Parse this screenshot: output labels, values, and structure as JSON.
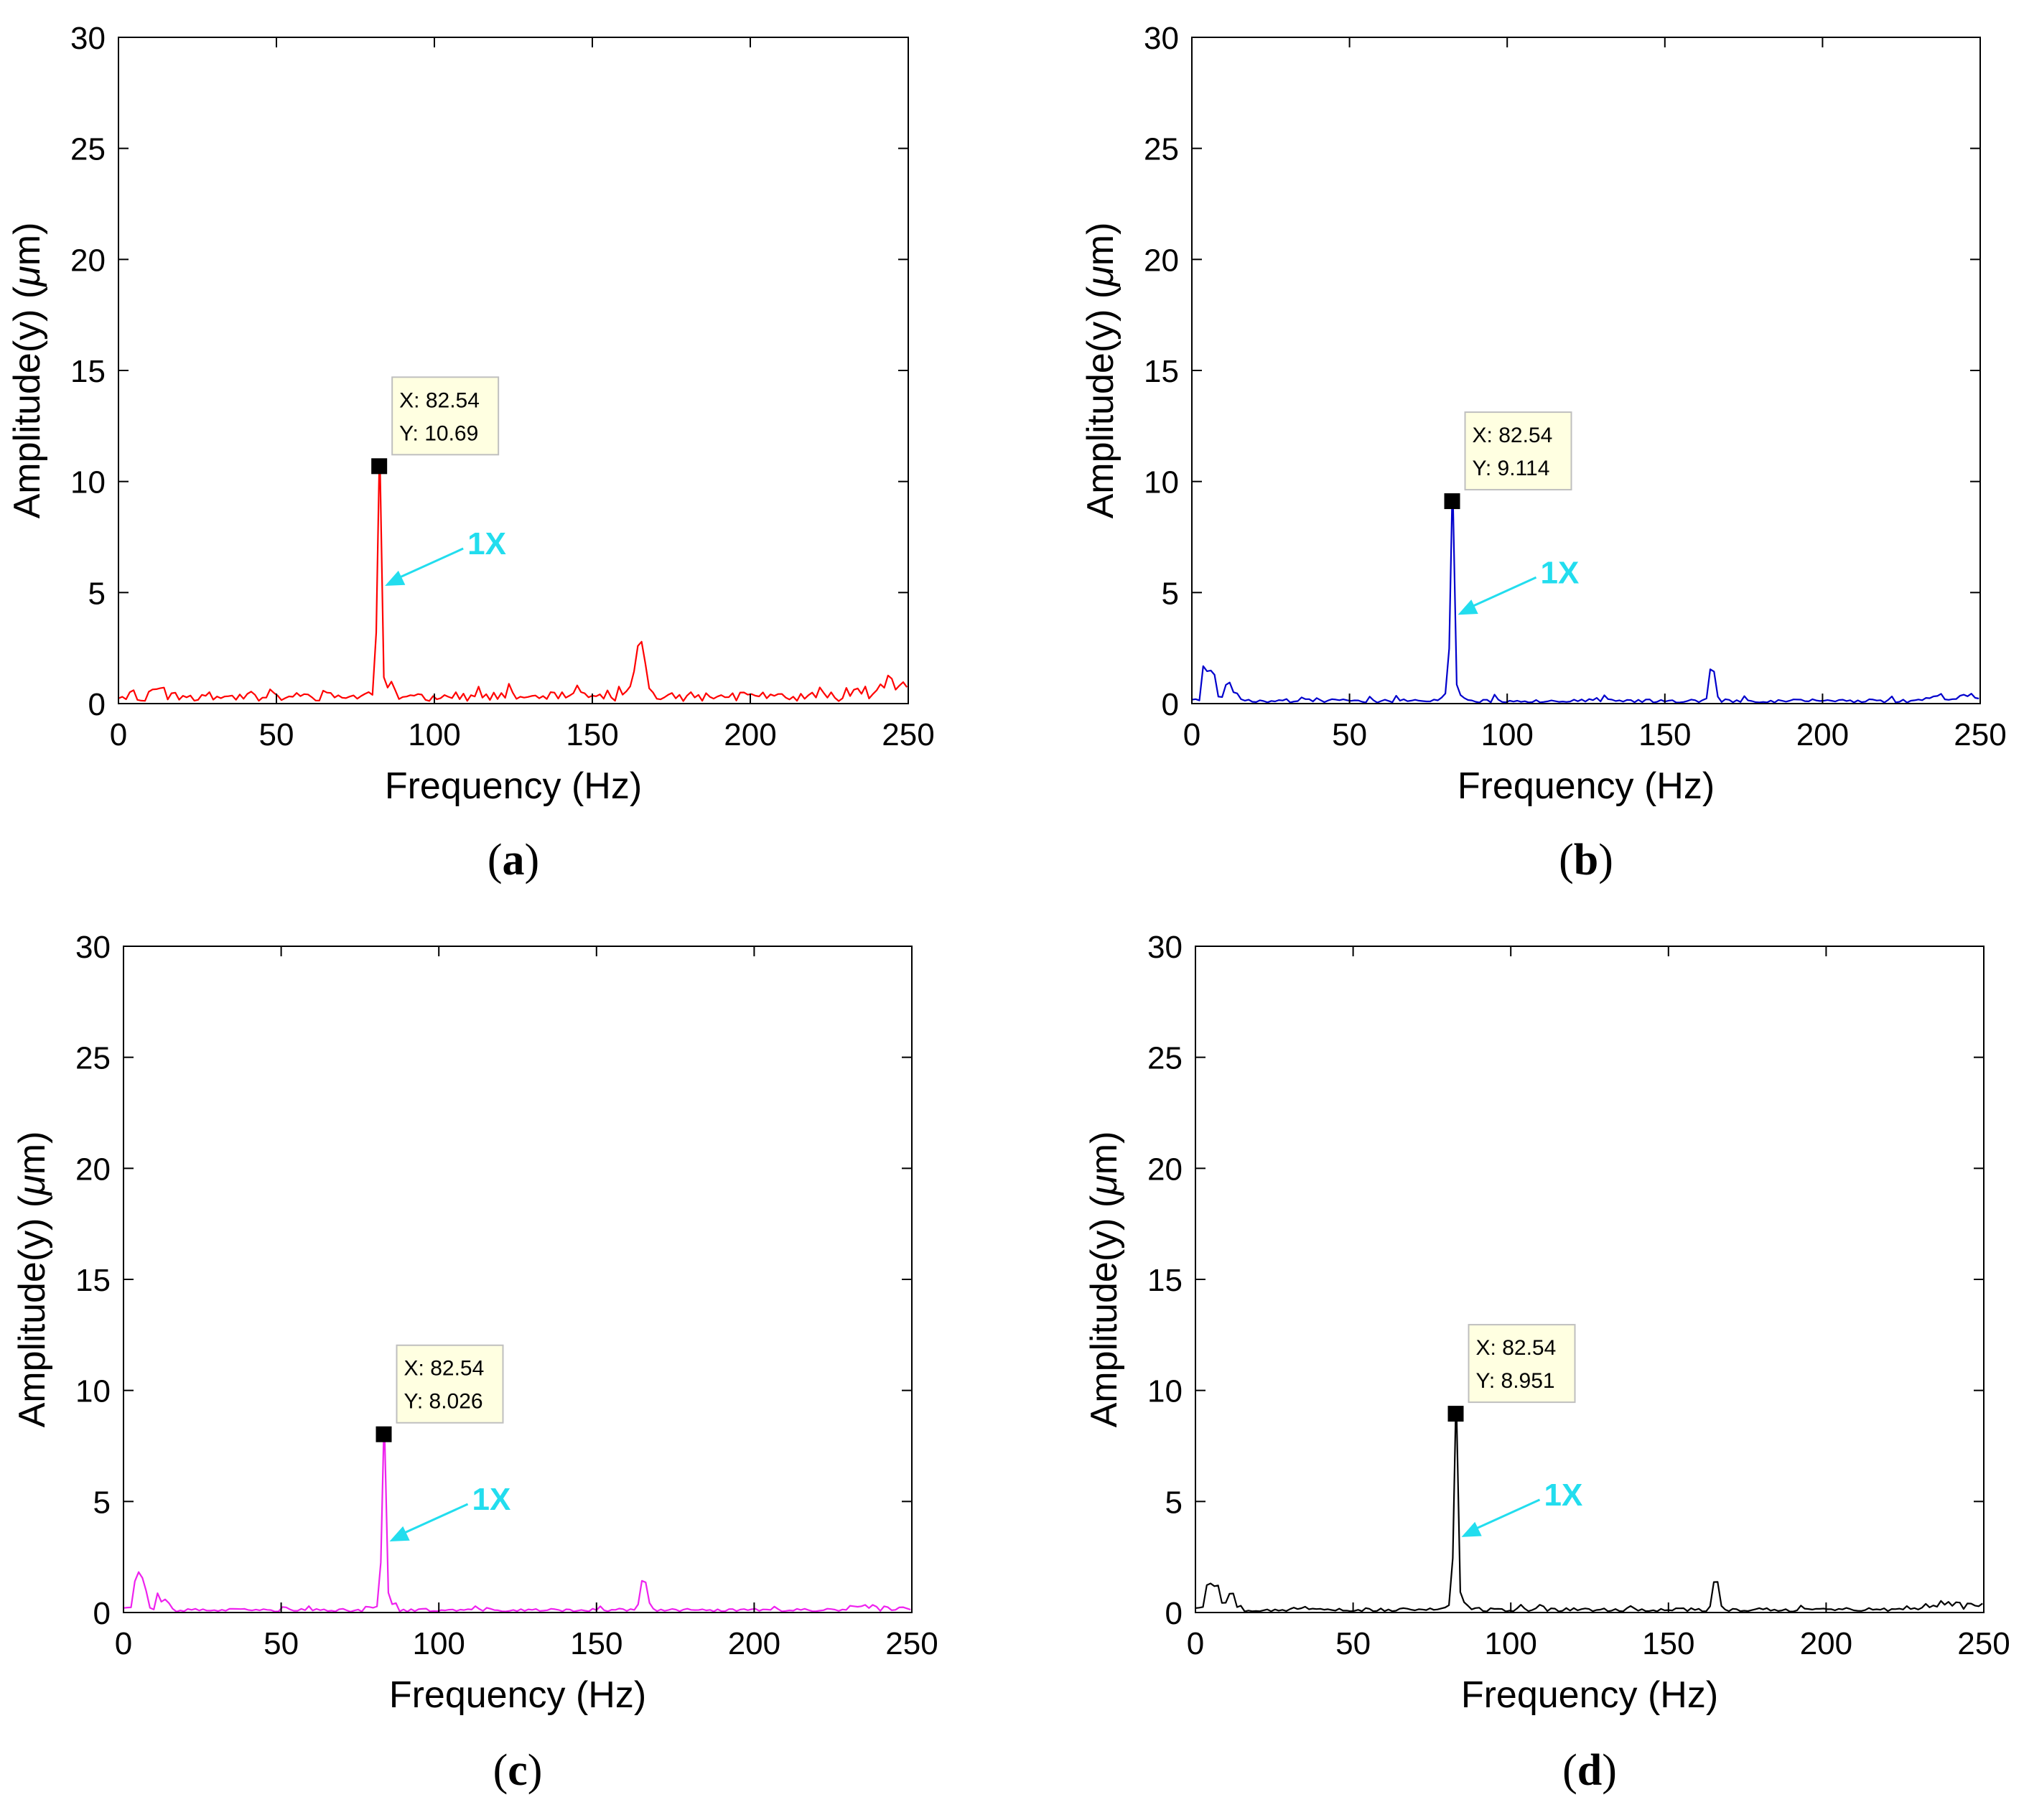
{
  "figure": {
    "panels": [
      "a",
      "b",
      "c",
      "d"
    ],
    "annotation_color": "#22DDEE",
    "datatip_background": "#FFFFE1"
  },
  "chart_data": [
    {
      "id": "a",
      "type": "line",
      "caption_letter": "a",
      "color": "#FF0000",
      "xlabel": "Frequency (Hz)",
      "ylabel_prefix": "Amplitude(y) (",
      "ylabel_mu": "μ",
      "ylabel_suffix": "m)",
      "xlim": [
        0,
        250
      ],
      "ylim": [
        0,
        30
      ],
      "xticks": [
        0,
        50,
        100,
        150,
        200,
        250
      ],
      "yticks": [
        0,
        5,
        10,
        15,
        20,
        25,
        30
      ],
      "peak": {
        "x": 82.54,
        "y": 10.69
      },
      "datatip": {
        "x_text": "X: 82.54",
        "y_text": "Y: 10.69"
      },
      "annotation": {
        "text": "1X",
        "x": 82.54,
        "y": 5.3
      },
      "harmonics": [
        {
          "x": 165,
          "y": 2.5,
          "width": 1.6
        }
      ],
      "noise": 0.45,
      "low_freq": [
        0.3,
        0.7,
        0.2,
        0.6,
        0.7
      ],
      "tail": 0.8,
      "seed": 11
    },
    {
      "id": "b",
      "type": "line",
      "caption_letter": "b",
      "color": "#0000CC",
      "xlabel": "Frequency (Hz)",
      "ylabel_prefix": "Amplitude(y) (",
      "ylabel_mu": "μ",
      "ylabel_suffix": "m)",
      "xlim": [
        0,
        250
      ],
      "ylim": [
        0,
        30
      ],
      "xticks": [
        0,
        50,
        100,
        150,
        200,
        250
      ],
      "yticks": [
        0,
        5,
        10,
        15,
        20,
        25,
        30
      ],
      "peak": {
        "x": 82.54,
        "y": 9.114
      },
      "datatip": {
        "x_text": "X: 82.54",
        "y_text": "Y: 9.114"
      },
      "annotation": {
        "text": "1X",
        "x": 82.54,
        "y": 4.0
      },
      "harmonics": [
        {
          "x": 165,
          "y": 1.8,
          "width": 0.8
        }
      ],
      "noise": 0.18,
      "low_freq": [
        0.2,
        2.0,
        1.6,
        0.3,
        1.1,
        0.5
      ],
      "tail": 0.3,
      "seed": 23
    },
    {
      "id": "c",
      "type": "line",
      "caption_letter": "c",
      "color": "#EE22EE",
      "xlabel": "Frequency (Hz)",
      "ylabel_prefix": "Amplitude(y) (",
      "ylabel_mu": "μ",
      "ylabel_suffix": "m)",
      "xlim": [
        0,
        250
      ],
      "ylim": [
        0,
        30
      ],
      "xticks": [
        0,
        50,
        100,
        150,
        200,
        250
      ],
      "yticks": [
        0,
        5,
        10,
        15,
        20,
        25,
        30
      ],
      "peak": {
        "x": 82.54,
        "y": 8.026
      },
      "datatip": {
        "x_text": "X: 82.54",
        "y_text": "Y: 8.026"
      },
      "annotation": {
        "text": "1X",
        "x": 82.54,
        "y": 3.2
      },
      "harmonics": [
        {
          "x": 165,
          "y": 1.6,
          "width": 0.9
        }
      ],
      "noise": 0.15,
      "low_freq": [
        0.3,
        2.2,
        1.5,
        0.2,
        0.8,
        0.6
      ],
      "tail": 0.2,
      "seed": 37
    },
    {
      "id": "d",
      "type": "line",
      "caption_letter": "d",
      "color": "#000000",
      "xlabel": "Frequency (Hz)",
      "ylabel_prefix": "Amplitude(y) (",
      "ylabel_mu": "μ",
      "ylabel_suffix": "m)",
      "xlim": [
        0,
        250
      ],
      "ylim": [
        0,
        30
      ],
      "xticks": [
        0,
        50,
        100,
        150,
        200,
        250
      ],
      "yticks": [
        0,
        5,
        10,
        15,
        20,
        25,
        30
      ],
      "peak": {
        "x": 82.54,
        "y": 8.951
      },
      "datatip": {
        "x_text": "X: 82.54",
        "y_text": "Y: 8.951"
      },
      "annotation": {
        "text": "1X",
        "x": 82.54,
        "y": 3.4
      },
      "harmonics": [
        {
          "x": 165,
          "y": 1.5,
          "width": 0.9
        }
      ],
      "noise": 0.18,
      "low_freq": [
        0.3,
        2.0,
        1.8,
        0.6,
        1.0,
        0.4
      ],
      "tail": 0.4,
      "seed": 53
    }
  ]
}
